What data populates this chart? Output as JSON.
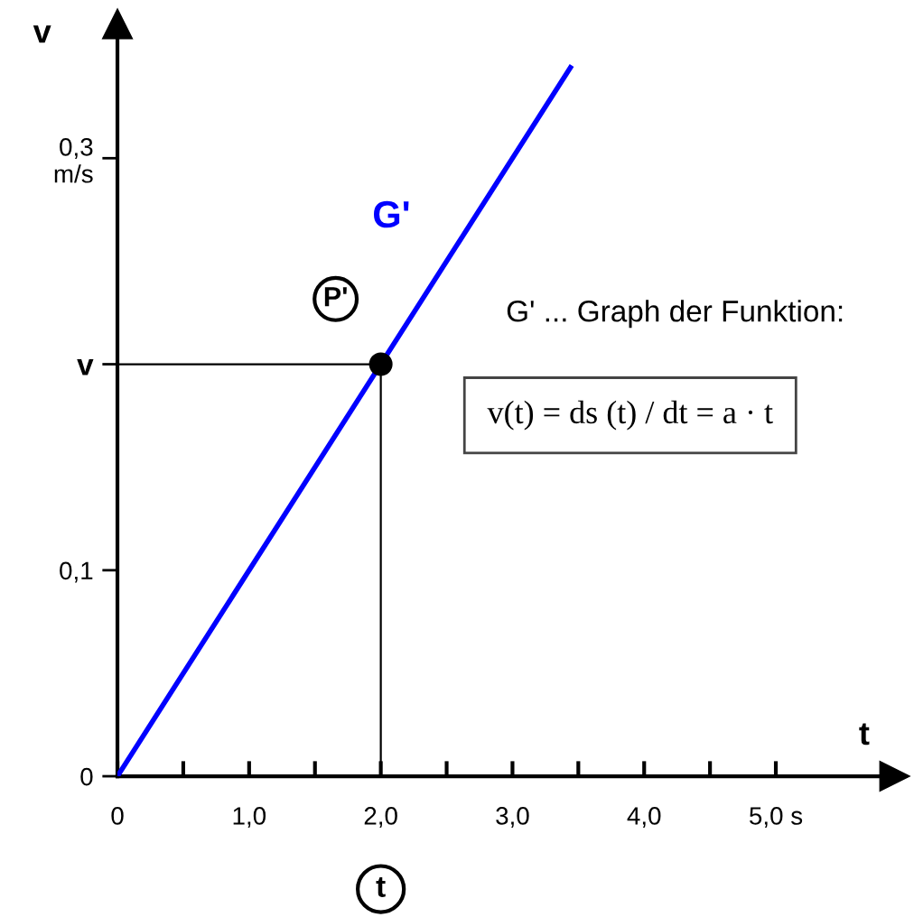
{
  "chart_data": {
    "type": "line",
    "xlabel": "t",
    "ylabel": "v",
    "x": [
      0,
      3.44
    ],
    "series": [
      {
        "name": "G'",
        "color": "#0000ff",
        "values": [
          0,
          0.344
        ],
        "marker": "none"
      },
      {
        "name": "P'",
        "type": "scatter",
        "x": [
          2.0
        ],
        "color": "#000000",
        "values": [
          0.2
        ],
        "marker": "circle"
      }
    ],
    "xlim": [
      0,
      5.9
    ],
    "ylim": [
      0,
      0.365
    ],
    "xticks": [
      {
        "value": 0,
        "label": "0"
      },
      {
        "value": 0.5,
        "label": null
      },
      {
        "value": 1.0,
        "label": "1,0"
      },
      {
        "value": 1.5,
        "label": null
      },
      {
        "value": 2.0,
        "label": "2,0"
      },
      {
        "value": 2.5,
        "label": null
      },
      {
        "value": 3.0,
        "label": "3,0"
      },
      {
        "value": 3.5,
        "label": null
      },
      {
        "value": 4.0,
        "label": "4,0"
      },
      {
        "value": 4.5,
        "label": null
      },
      {
        "value": 5.0,
        "label": "5,0 s"
      }
    ],
    "yticks": [
      {
        "value": 0,
        "label": "0"
      },
      {
        "value": 0.1,
        "label": "0,1"
      },
      {
        "value": 0.2,
        "label": "v"
      },
      {
        "value": 0.3,
        "label": "0,3\nm/s"
      }
    ],
    "ref_lines": [
      {
        "axis": "y",
        "value": 0.2,
        "label": null,
        "color": "#000000"
      },
      {
        "axis": "x",
        "value": 2.0,
        "label": null,
        "color": "#000000"
      }
    ],
    "annotations": [
      "t",
      "G' ... Graph der Funktion:",
      "v(t) = ds (t) / dt = a · t"
    ],
    "grid": false
  }
}
